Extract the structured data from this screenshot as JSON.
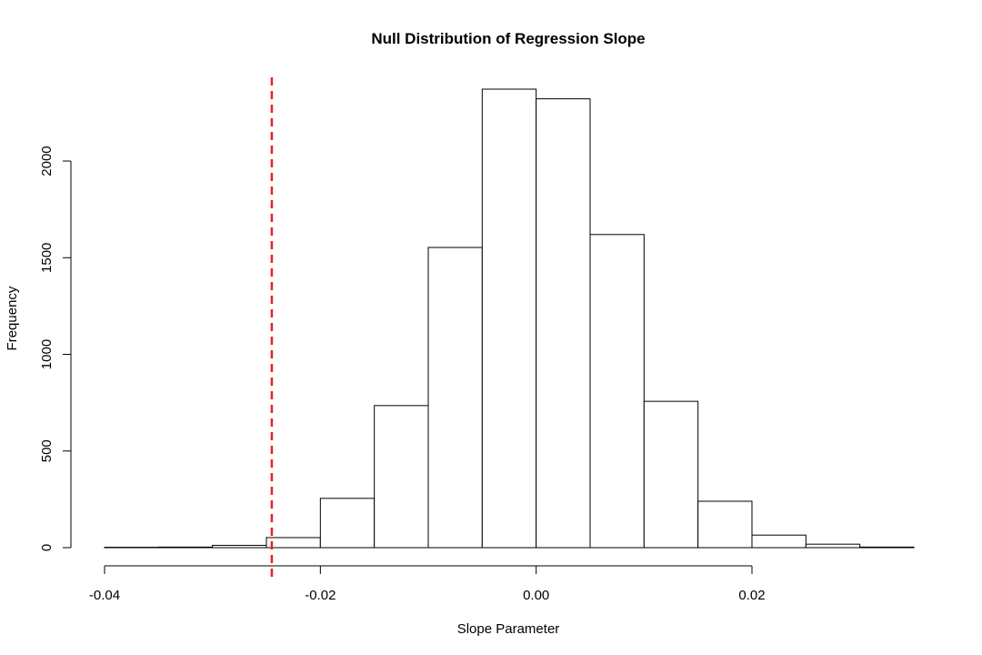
{
  "chart_data": {
    "type": "bar",
    "title": "Null Distribution of Regression Slope",
    "xlabel": "Slope Parameter",
    "ylabel": "Frequency",
    "bin_edges": [
      -0.04,
      -0.035,
      -0.03,
      -0.025,
      -0.02,
      -0.015,
      -0.01,
      -0.005,
      0.0,
      0.005,
      0.01,
      0.015,
      0.02,
      0.025,
      0.03,
      0.035
    ],
    "values": [
      2,
      3,
      12,
      52,
      255,
      735,
      1553,
      2372,
      2322,
      1620,
      757,
      240,
      65,
      18,
      3
    ],
    "xlim": [
      -0.04,
      0.035
    ],
    "ylim": [
      0,
      2372
    ],
    "x_ticks": [
      -0.04,
      -0.02,
      0.0,
      0.02
    ],
    "x_tick_labels": [
      "-0.04",
      "-0.02",
      "0.00",
      "0.02"
    ],
    "y_ticks": [
      0,
      500,
      1000,
      1500,
      2000
    ],
    "y_tick_labels": [
      "0",
      "500",
      "1000",
      "1500",
      "2000"
    ],
    "reference_line": {
      "x": -0.0245,
      "color": "#e8202a",
      "style": "dashed"
    },
    "grid": false,
    "legend": "none"
  }
}
